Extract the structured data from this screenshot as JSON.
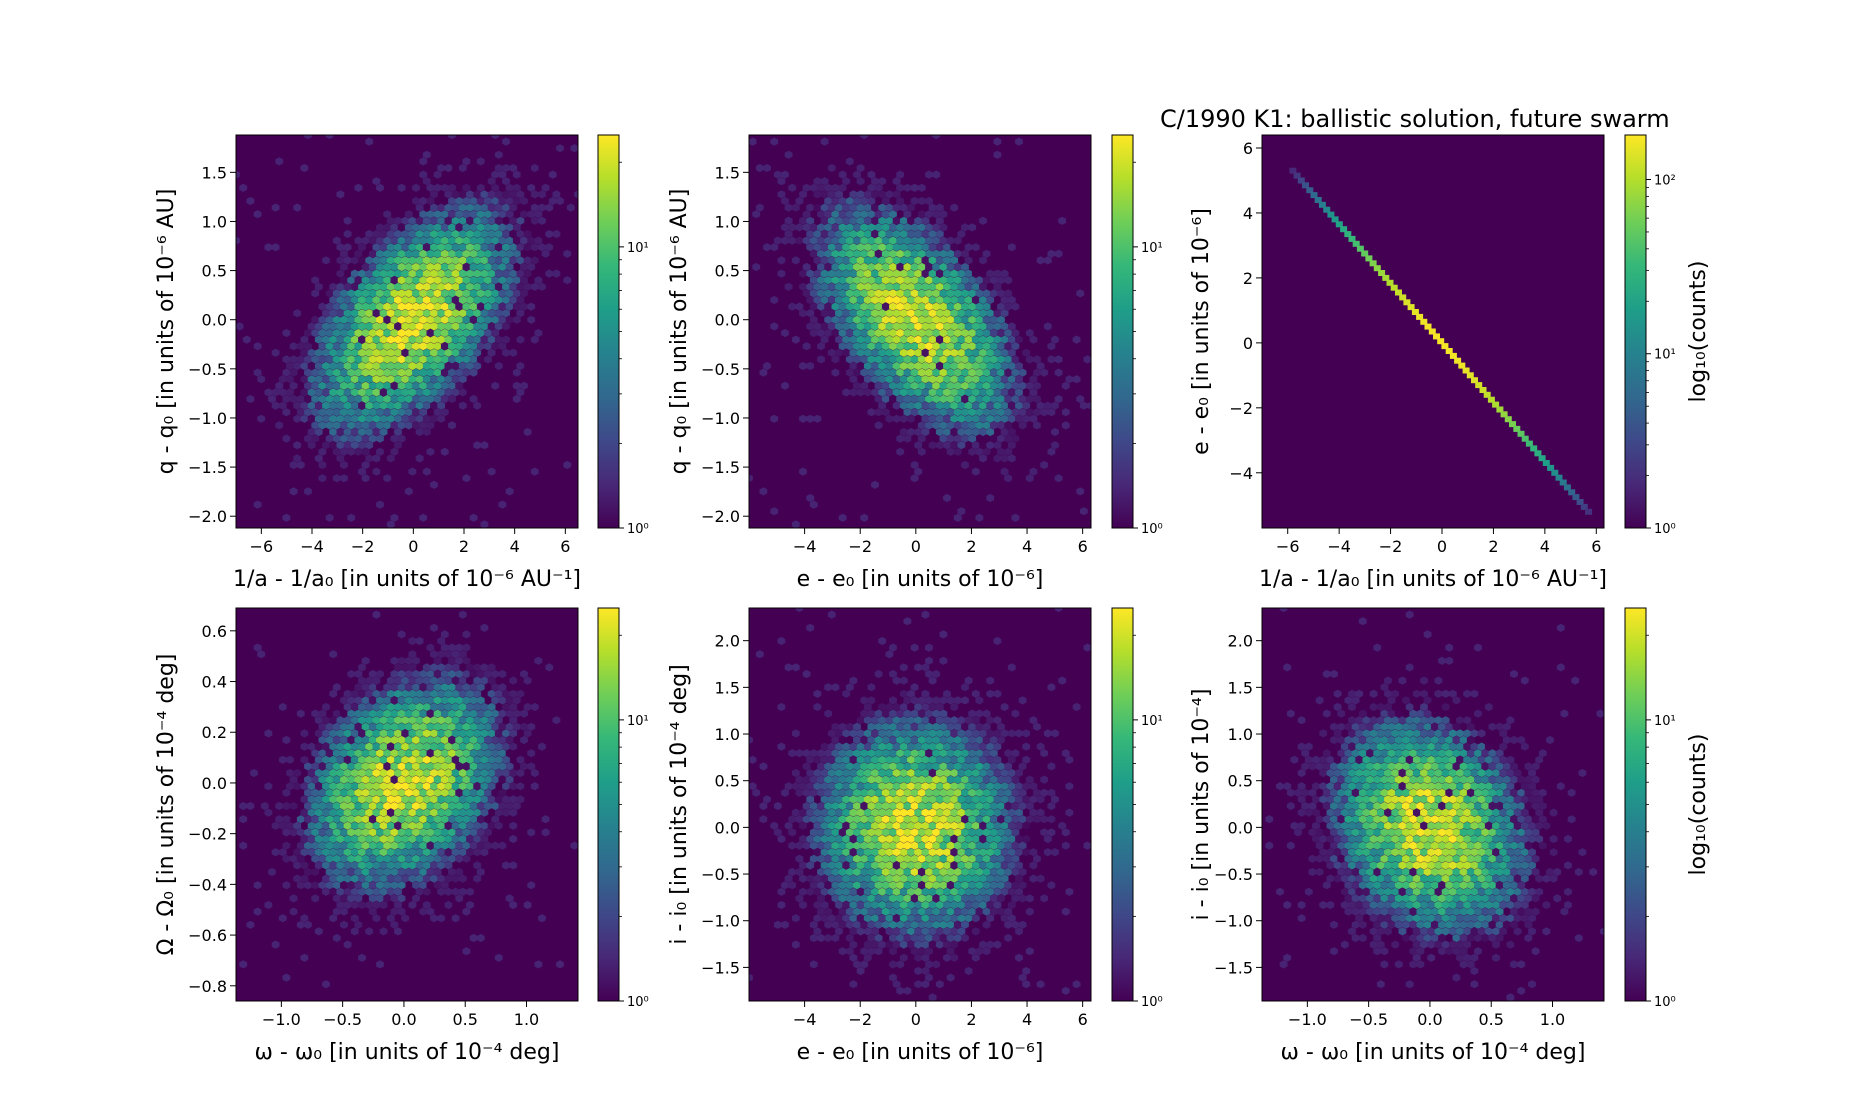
{
  "figure_title": "C/1990 K1:  ballistic solution, future swarm",
  "colors": {
    "background_plot": "#440154",
    "viridis": [
      "#440154",
      "#482878",
      "#3e4989",
      "#31688e",
      "#26828e",
      "#1f9e89",
      "#35b779",
      "#6ece58",
      "#b5de2b",
      "#fde725"
    ]
  },
  "chart_data": [
    {
      "type": "heatmap",
      "plot_style": "hexbin",
      "correlation": 0.55,
      "xlabel": "1/a - 1/a₀ [in units of 10⁻⁶ AU⁻¹]",
      "ylabel": "q - q₀ [in units of 10⁻⁶ AU]",
      "xlim": [
        -7.0,
        6.5
      ],
      "ylim": [
        -2.12,
        1.88
      ],
      "x_sigma": 1.9,
      "y_sigma": 0.55,
      "xticks": [
        -6,
        -4,
        -2,
        0,
        2,
        4,
        6
      ],
      "xtick_labels": [
        "−6",
        "−4",
        "−2",
        "0",
        "2",
        "4",
        "6"
      ],
      "yticks": [
        -2.0,
        -1.5,
        -1.0,
        -0.5,
        0.0,
        0.5,
        1.0,
        1.5
      ],
      "ytick_labels": [
        "−2.0",
        "−1.5",
        "−1.0",
        "−0.5",
        "0.0",
        "0.5",
        "1.0",
        "1.5"
      ],
      "colorbar": {
        "scale": "log",
        "range": [
          1,
          25
        ],
        "ticks": [
          1,
          10
        ],
        "tick_labels": [
          "10⁰",
          "10¹"
        ],
        "label": ""
      }
    },
    {
      "type": "heatmap",
      "plot_style": "hexbin",
      "correlation": -0.55,
      "xlabel": "e - e₀ [in units of 10⁻⁶]",
      "ylabel": "q - q₀ [in units of 10⁻⁶ AU]",
      "xlim": [
        -6.0,
        6.3
      ],
      "ylim": [
        -2.12,
        1.88
      ],
      "x_sigma": 1.7,
      "y_sigma": 0.55,
      "xticks": [
        -4,
        -2,
        0,
        2,
        4,
        6
      ],
      "xtick_labels": [
        "−4",
        "−2",
        "0",
        "2",
        "4",
        "6"
      ],
      "yticks": [
        -2.0,
        -1.5,
        -1.0,
        -0.5,
        0.0,
        0.5,
        1.0,
        1.5
      ],
      "ytick_labels": [
        "−2.0",
        "−1.5",
        "−1.0",
        "−0.5",
        "0.0",
        "0.5",
        "1.0",
        "1.5"
      ],
      "colorbar": {
        "scale": "log",
        "range": [
          1,
          25
        ],
        "ticks": [
          1,
          10
        ],
        "tick_labels": [
          "10⁰",
          "10¹"
        ],
        "label": ""
      }
    },
    {
      "type": "heatmap",
      "plot_style": "hexbin",
      "correlation": -1.0,
      "xlabel": "1/a - 1/a₀ [in units of 10⁻⁶ AU⁻¹]",
      "ylabel": "e - e₀ [in units of 10⁻⁶]",
      "xlim": [
        -7.0,
        6.3
      ],
      "ylim": [
        -5.7,
        6.4
      ],
      "x_sigma": 1.9,
      "y_sigma": 1.9,
      "line": {
        "x0": -5.8,
        "y0": 5.3,
        "x1": 5.7,
        "y1": -5.2
      },
      "xticks": [
        -6,
        -4,
        -2,
        0,
        2,
        4,
        6
      ],
      "xtick_labels": [
        "−6",
        "−4",
        "−2",
        "0",
        "2",
        "4",
        "6"
      ],
      "yticks": [
        -4,
        -2,
        0,
        2,
        4,
        6
      ],
      "ytick_labels": [
        "−4",
        "−2",
        "0",
        "2",
        "4",
        "6"
      ],
      "colorbar": {
        "scale": "log",
        "range": [
          1,
          180
        ],
        "ticks": [
          1,
          10,
          100
        ],
        "tick_labels": [
          "10⁰",
          "10¹",
          "10²"
        ],
        "label": "log₁₀(counts)"
      }
    },
    {
      "type": "heatmap",
      "plot_style": "hexbin",
      "correlation": 0.3,
      "xlabel": "ω - ω₀ [in units of 10⁻⁴ deg]",
      "ylabel": "Ω - Ω₀ [in units of 10⁻⁴ deg]",
      "xlim": [
        -1.37,
        1.42
      ],
      "ylim": [
        -0.86,
        0.69
      ],
      "x_sigma": 0.38,
      "y_sigma": 0.2,
      "xticks": [
        -1.0,
        -0.5,
        0.0,
        0.5,
        1.0
      ],
      "xtick_labels": [
        "−1.0",
        "−0.5",
        "0.0",
        "0.5",
        "1.0"
      ],
      "yticks": [
        -0.8,
        -0.6,
        -0.4,
        -0.2,
        0.0,
        0.2,
        0.4,
        0.6
      ],
      "ytick_labels": [
        "−0.8",
        "−0.6",
        "−0.4",
        "−0.2",
        "0.0",
        "0.2",
        "0.4",
        "0.6"
      ],
      "colorbar": {
        "scale": "log",
        "range": [
          1,
          25
        ],
        "ticks": [
          1,
          10
        ],
        "tick_labels": [
          "10⁰",
          "10¹"
        ],
        "label": ""
      }
    },
    {
      "type": "heatmap",
      "plot_style": "hexbin",
      "correlation": 0.0,
      "xlabel": "e - e₀ [in units of 10⁻⁶]",
      "ylabel": "i - i₀ [in units of 10⁻⁴ deg]",
      "xlim": [
        -6.0,
        6.3
      ],
      "ylim": [
        -1.86,
        2.35
      ],
      "x_sigma": 1.7,
      "y_sigma": 0.55,
      "xticks": [
        -4,
        -2,
        0,
        2,
        4,
        6
      ],
      "xtick_labels": [
        "−4",
        "−2",
        "0",
        "2",
        "4",
        "6"
      ],
      "yticks": [
        -1.5,
        -1.0,
        -0.5,
        0.0,
        0.5,
        1.0,
        1.5,
        2.0
      ],
      "ytick_labels": [
        "−1.5",
        "−1.0",
        "−0.5",
        "0.0",
        "0.5",
        "1.0",
        "1.5",
        "2.0"
      ],
      "colorbar": {
        "scale": "log",
        "range": [
          1,
          25
        ],
        "ticks": [
          1,
          10
        ],
        "tick_labels": [
          "10⁰",
          "10¹"
        ],
        "label": ""
      }
    },
    {
      "type": "heatmap",
      "plot_style": "hexbin",
      "correlation": -0.2,
      "xlabel": "ω - ω₀ [in units of 10⁻⁴ deg]",
      "ylabel": "i - i₀ [in units of 10⁻⁴]",
      "xlim": [
        -1.37,
        1.42
      ],
      "ylim": [
        -1.86,
        2.35
      ],
      "x_sigma": 0.38,
      "y_sigma": 0.55,
      "xticks": [
        -1.0,
        -0.5,
        0.0,
        0.5,
        1.0
      ],
      "xtick_labels": [
        "−1.0",
        "−0.5",
        "0.0",
        "0.5",
        "1.0"
      ],
      "yticks": [
        -1.5,
        -1.0,
        -0.5,
        0.0,
        0.5,
        1.0,
        1.5,
        2.0
      ],
      "ytick_labels": [
        "−1.5",
        "−1.0",
        "−0.5",
        "0.0",
        "0.5",
        "1.0",
        "1.5",
        "2.0"
      ],
      "colorbar": {
        "scale": "log",
        "range": [
          1,
          25
        ],
        "ticks": [
          1,
          10
        ],
        "tick_labels": [
          "10⁰",
          "10¹"
        ],
        "label": "log₁₀(counts)"
      }
    }
  ]
}
